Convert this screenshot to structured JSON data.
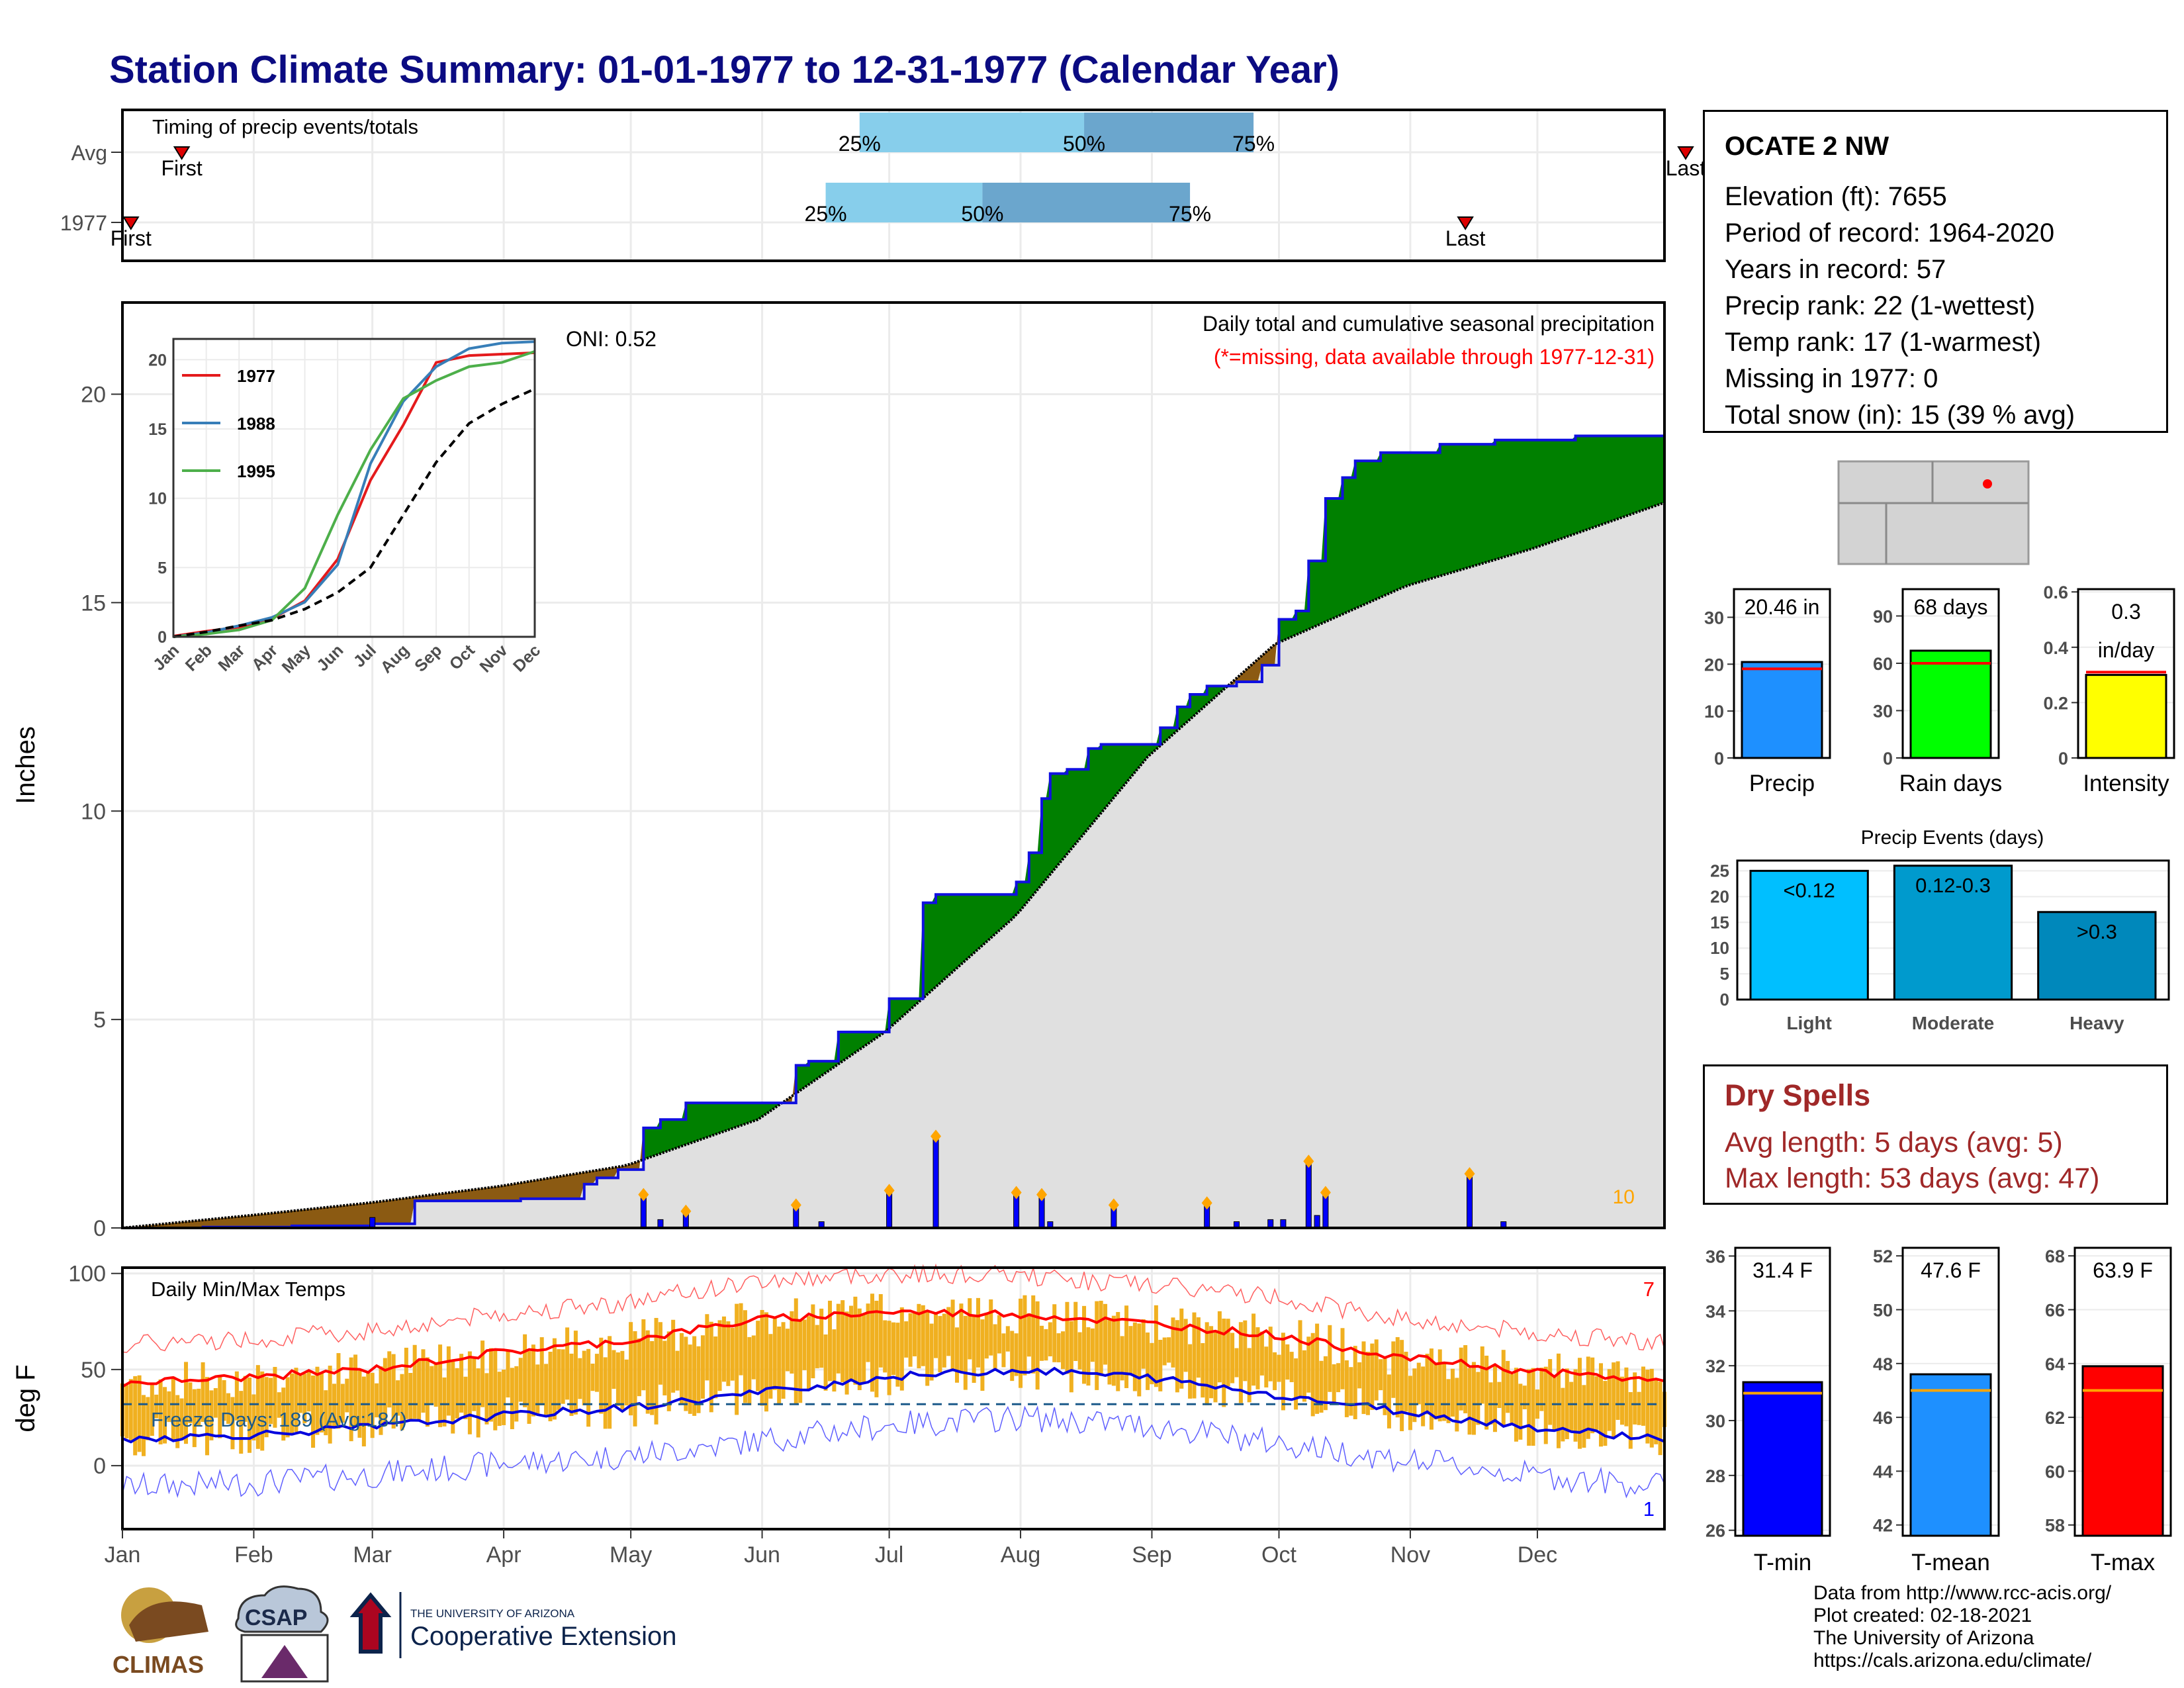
{
  "page": {
    "title": "Station Climate Summary: 01-01-1977 to 12-31-1977 (Calendar Year)"
  },
  "timing_panel": {
    "title": "Timing of precip events/totals",
    "rows": [
      {
        "label": "Avg",
        "first": 15,
        "q25": 175,
        "q50": 228,
        "q75": 268,
        "last": 370
      },
      {
        "label": "1977",
        "first": 3,
        "q25": 167,
        "q50": 204,
        "q75": 253,
        "last": 318
      }
    ],
    "first_label": "First",
    "last_label": "Last",
    "q25_label": "25%",
    "q50_label": "50%",
    "q75_label": "75%",
    "colors": {
      "light": "#87ceeb",
      "dark": "#6ba6cd",
      "marker": "#dd0000"
    }
  },
  "precip_panel": {
    "title": "Daily total and cumulative seasonal precipitation",
    "subtitle": "(*=missing, data available through 1977-12-31)",
    "oni": "ONI: 0.52",
    "ylabel": "Inches",
    "yticks": [
      0,
      5,
      10,
      15,
      20
    ],
    "ylim": [
      0,
      22.2
    ],
    "extreme_count": "10",
    "colors": {
      "above": "#008000",
      "below": "#8b5a12",
      "normal": "#e0e0e0",
      "line": "#1010e0",
      "marker": "#ffa500"
    }
  },
  "inset": {
    "yticks": [
      0,
      5,
      10,
      15,
      20
    ],
    "months": [
      "Jan",
      "Feb",
      "Mar",
      "Apr",
      "May",
      "Jun",
      "Jul",
      "Aug",
      "Sep",
      "Oct",
      "Nov",
      "Dec"
    ],
    "legend": [
      {
        "name": "1977",
        "color": "#e41a1c"
      },
      {
        "name": "1988",
        "color": "#377eb8"
      },
      {
        "name": "1995",
        "color": "#4daf4a"
      }
    ]
  },
  "temp_panel": {
    "title": "Daily Min/Max Temps",
    "ylabel": "deg F",
    "yticks": [
      0,
      50,
      100
    ],
    "ylim": [
      -33,
      103
    ],
    "freeze_text": "Freeze Days: 189 (Avg:184)",
    "record_high_count": "7",
    "record_low_count": "1",
    "freeze_line": 32,
    "colors": {
      "bar": "#f0b020",
      "max": "#ff0000",
      "min": "#0000dd"
    }
  },
  "months": [
    "Jan",
    "Feb",
    "Mar",
    "Apr",
    "May",
    "Jun",
    "Jul",
    "Aug",
    "Sep",
    "Oct",
    "Nov",
    "Dec"
  ],
  "station": {
    "name": "OCATE 2 NW",
    "lines": [
      "Elevation (ft): 7655",
      "Period of record: 1964-2020",
      "Years in record: 57",
      "Precip rank: 22 (1-wettest)",
      "Temp rank: 17 (1-warmest)",
      "Missing in 1977: 0",
      "Total snow (in): 15 (39 % avg)"
    ]
  },
  "summary_bars": [
    {
      "label": "Precip",
      "value_text": "20.46 in",
      "value": 20.46,
      "avg": 19.0,
      "ymax": 36,
      "ticks": [
        0,
        10,
        20,
        30
      ],
      "color": "#1e90ff"
    },
    {
      "label": "Rain days",
      "value_text": "68 days",
      "value": 68,
      "avg": 60,
      "ymax": 107,
      "ticks": [
        0,
        30,
        60,
        90
      ],
      "color": "#00ff00"
    },
    {
      "label": "Intensity",
      "value_text_1": "0.3",
      "value_text_2": "in/day",
      "value": 0.3,
      "avg": 0.31,
      "ymax": 0.61,
      "ticks": [
        0.0,
        0.2,
        0.4,
        0.6
      ],
      "color": "#ffff00"
    }
  ],
  "precip_events": {
    "title": "Precip Events (days)",
    "categories": [
      "Light",
      "Moderate",
      "Heavy"
    ],
    "value_labels": [
      "<0.12",
      "0.12-0.3",
      ">0.3"
    ],
    "values": [
      25,
      26,
      17
    ],
    "ticks": [
      0,
      5,
      10,
      15,
      20,
      25
    ],
    "colors": [
      "#00bfff",
      "#009acd",
      "#0088bb"
    ]
  },
  "dry_spells": {
    "title": "Dry Spells",
    "avg_length": "Avg length: 5 days (avg: 5)",
    "max_length": "Max length: 53 days (avg: 47)"
  },
  "temp_bars": [
    {
      "label": "T-min",
      "value_text": "31.4 F",
      "value": 31.4,
      "avg": 31.0,
      "ymin": 25.8,
      "ymax": 36.3,
      "ticks": [
        26,
        28,
        30,
        32,
        34,
        36
      ],
      "color": "#0000ff"
    },
    {
      "label": "T-mean",
      "value_text": "47.6 F",
      "value": 47.6,
      "avg": 47.0,
      "ymin": 41.6,
      "ymax": 52.3,
      "ticks": [
        42,
        44,
        46,
        48,
        50,
        52
      ],
      "color": "#1e90ff"
    },
    {
      "label": "T-max",
      "value_text": "63.9 F",
      "value": 63.9,
      "avg": 63.0,
      "ymin": 57.6,
      "ymax": 68.3,
      "ticks": [
        58,
        60,
        62,
        64,
        66,
        68
      ],
      "color": "#ff0000"
    }
  ],
  "credits": [
    "Data from http://www.rcc-acis.org/",
    "Plot created: 02-18-2021",
    "The University of Arizona",
    "https://cals.arizona.edu/climate/"
  ],
  "logos": {
    "climas": "CLIMAS",
    "csap": "CSAP",
    "ua_small": "THE UNIVERSITY OF ARIZONA",
    "ua_big": "Cooperative Extension"
  },
  "chart_data": [
    {
      "type": "bar",
      "title": "Timing of precip events/totals",
      "categories": [
        "Avg",
        "1977"
      ],
      "series": [
        {
          "name": "First",
          "values": [
            15,
            3
          ]
        },
        {
          "name": "25%",
          "values": [
            175,
            167
          ]
        },
        {
          "name": "50%",
          "values": [
            228,
            204
          ]
        },
        {
          "name": "75%",
          "values": [
            268,
            253
          ]
        },
        {
          "name": "Last",
          "values": [
            370,
            318
          ]
        }
      ],
      "x_unit": "day of year",
      "xlim": [
        1,
        365
      ]
    },
    {
      "type": "area",
      "title": "Daily total and cumulative seasonal precipitation",
      "subtitle": "(*=missing, data available through 1977-12-31)",
      "ylabel": "Inches",
      "xlabel": "",
      "x_unit": "day of year",
      "ylim": [
        0,
        22.2
      ],
      "legend": "none",
      "cumulative_observed": [
        [
          1,
          0
        ],
        [
          20,
          0.02
        ],
        [
          41,
          0.05
        ],
        [
          60,
          0.1
        ],
        [
          70,
          0.65
        ],
        [
          95,
          0.7
        ],
        [
          110,
          1.05
        ],
        [
          113,
          1.2
        ],
        [
          118,
          1.4
        ],
        [
          124,
          2.4
        ],
        [
          128,
          2.6
        ],
        [
          134,
          3.0
        ],
        [
          140,
          3.0
        ],
        [
          154,
          3.0
        ],
        [
          160,
          3.9
        ],
        [
          163,
          4.0
        ],
        [
          170,
          4.7
        ],
        [
          182,
          5.5
        ],
        [
          190,
          7.8
        ],
        [
          193,
          8.0
        ],
        [
          212,
          8.3
        ],
        [
          215,
          9.0
        ],
        [
          218,
          10.3
        ],
        [
          220,
          10.9
        ],
        [
          224,
          11.0
        ],
        [
          229,
          11.5
        ],
        [
          232,
          11.6
        ],
        [
          240,
          11.6
        ],
        [
          246,
          12.0
        ],
        [
          250,
          12.5
        ],
        [
          253,
          12.8
        ],
        [
          257,
          13.0
        ],
        [
          264,
          13.1
        ],
        [
          270,
          13.5
        ],
        [
          274,
          14.6
        ],
        [
          278,
          14.8
        ],
        [
          281,
          16.0
        ],
        [
          285,
          17.5
        ],
        [
          289,
          18.0
        ],
        [
          292,
          18.4
        ],
        [
          298,
          18.6
        ],
        [
          305,
          18.6
        ],
        [
          312,
          18.8
        ],
        [
          325,
          18.9
        ],
        [
          340,
          18.9
        ],
        [
          344,
          19.0
        ],
        [
          359,
          19.0
        ],
        [
          365,
          19.0
        ]
      ],
      "cumulative_normal": [
        [
          1,
          0
        ],
        [
          31,
          0.3
        ],
        [
          59,
          0.6
        ],
        [
          90,
          1.0
        ],
        [
          120,
          1.5
        ],
        [
          151,
          2.6
        ],
        [
          181,
          4.7
        ],
        [
          212,
          7.5
        ],
        [
          243,
          11.3
        ],
        [
          273,
          14.0
        ],
        [
          304,
          15.4
        ],
        [
          334,
          16.3
        ],
        [
          365,
          17.4
        ]
      ],
      "daily_precip_highlights": [
        [
          60,
          0.25
        ],
        [
          124,
          0.8
        ],
        [
          128,
          0.2
        ],
        [
          134,
          0.4
        ],
        [
          160,
          0.55
        ],
        [
          166,
          0.15
        ],
        [
          182,
          0.9
        ],
        [
          193,
          2.2
        ],
        [
          212,
          0.85
        ],
        [
          218,
          0.8
        ],
        [
          220,
          0.15
        ],
        [
          235,
          0.55
        ],
        [
          257,
          0.6
        ],
        [
          264,
          0.15
        ],
        [
          272,
          0.2
        ],
        [
          275,
          0.2
        ],
        [
          281,
          1.6
        ],
        [
          283,
          0.3
        ],
        [
          285,
          0.85
        ],
        [
          319,
          1.3
        ],
        [
          327,
          0.15
        ]
      ]
    },
    {
      "type": "line",
      "title": "",
      "xlabel": "",
      "ylabel": "",
      "x": [
        "Jan",
        "Feb",
        "Mar",
        "Apr",
        "May",
        "Jun",
        "Jul",
        "Aug",
        "Sep",
        "Oct",
        "Nov",
        "Dec"
      ],
      "ylim": [
        0,
        21
      ],
      "series": [
        {
          "name": "1977",
          "values": [
            0.05,
            0.4,
            0.7,
            1.3,
            2.6,
            5.6,
            11.3,
            15.3,
            19.8,
            20.3,
            20.4,
            20.5
          ]
        },
        {
          "name": "1988",
          "values": [
            0.0,
            0.3,
            0.8,
            1.4,
            2.5,
            5.2,
            12.5,
            17.0,
            19.5,
            20.8,
            21.2,
            21.3
          ]
        },
        {
          "name": "1995",
          "values": [
            0.0,
            0.2,
            0.5,
            1.2,
            3.5,
            8.8,
            13.5,
            17.2,
            18.5,
            19.5,
            19.8,
            20.6
          ]
        },
        {
          "values": [
            0.0,
            0.35,
            0.8,
            1.2,
            2.0,
            3.2,
            5.0,
            8.8,
            12.6,
            15.4,
            16.8,
            17.9
          ]
        }
      ]
    },
    {
      "type": "line",
      "title": "Daily Min/Max Temps",
      "ylabel": "deg F",
      "xlabel": "",
      "x_unit": "day of year",
      "ylim": [
        -33,
        103
      ],
      "series": [
        {
          "name": "max",
          "values": [
            [
              1,
              43
            ],
            [
              31,
              46
            ],
            [
              59,
              50
            ],
            [
              90,
              59
            ],
            [
              120,
              65
            ],
            [
              151,
              76
            ],
            [
              181,
              80
            ],
            [
              212,
              79
            ],
            [
              243,
              74
            ],
            [
              273,
              68
            ],
            [
              304,
              56
            ],
            [
              334,
              49
            ],
            [
              365,
              44
            ]
          ]
        },
        {
          "name": "min",
          "values": [
            [
              1,
              14
            ],
            [
              31,
              16
            ],
            [
              59,
              20
            ],
            [
              90,
              26
            ],
            [
              120,
              30
            ],
            [
              151,
              38
            ],
            [
              181,
              46
            ],
            [
              212,
              50
            ],
            [
              243,
              46
            ],
            [
              273,
              37
            ],
            [
              304,
              28
            ],
            [
              334,
              20
            ],
            [
              365,
              14
            ]
          ]
        }
      ]
    },
    {
      "type": "bar",
      "title": "",
      "categories": [
        "Precip",
        "Rain days",
        "Intensity"
      ],
      "values": [
        20.46,
        68,
        0.3
      ]
    },
    {
      "type": "bar",
      "title": "Precip Events (days)",
      "categories": [
        "Light",
        "Moderate",
        "Heavy"
      ],
      "values": [
        25,
        26,
        17
      ]
    },
    {
      "type": "bar",
      "title": "",
      "categories": [
        "T-min",
        "T-mean",
        "T-max"
      ],
      "values": [
        31.4,
        47.6,
        63.9
      ]
    }
  ]
}
